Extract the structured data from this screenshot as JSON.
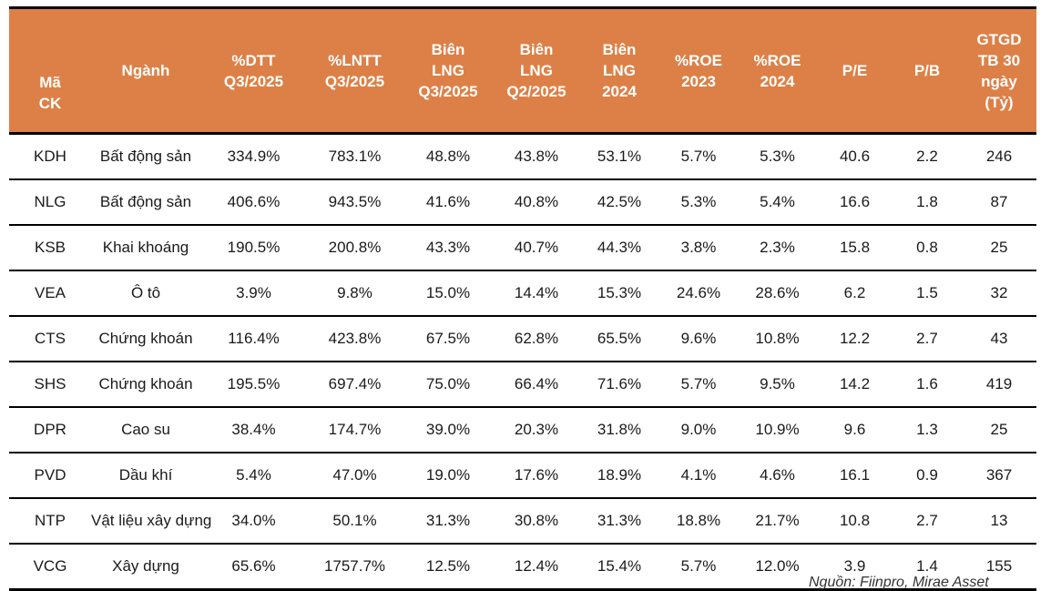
{
  "colors": {
    "header_bg": "#DD8047",
    "header_text": "#FFFFFF",
    "body_text": "#1A1A1A",
    "grid_line": "#000000"
  },
  "table": {
    "columns": [
      {
        "id": "ma-ck",
        "label": "Mã\nCK"
      },
      {
        "id": "nganh",
        "label": "Ngành"
      },
      {
        "id": "dtt-q3-2025",
        "label": "%DTT\nQ3/2025"
      },
      {
        "id": "lntt-q3-2025",
        "label": "%LNTT\nQ3/2025"
      },
      {
        "id": "bien-lng-q3-2025",
        "label": "Biên\nLNG\nQ3/2025"
      },
      {
        "id": "bien-lng-q2-2025",
        "label": "Biên\nLNG\nQ2/2025"
      },
      {
        "id": "bien-lng-2024",
        "label": "Biên\nLNG\n2024"
      },
      {
        "id": "roe-2023",
        "label": "%ROE\n2023"
      },
      {
        "id": "roe-2024",
        "label": "%ROE\n2024"
      },
      {
        "id": "pe",
        "label": "P/E"
      },
      {
        "id": "pb",
        "label": "P/B"
      },
      {
        "id": "gtgd",
        "label": "GTGD\nTB 30\nngày\n(Tỷ)"
      }
    ],
    "rows": [
      [
        "KDH",
        "Bất động sản",
        "334.9%",
        "783.1%",
        "48.8%",
        "43.8%",
        "53.1%",
        "5.7%",
        "5.3%",
        "40.6",
        "2.2",
        "246"
      ],
      [
        "NLG",
        "Bất động sản",
        "406.6%",
        "943.5%",
        "41.6%",
        "40.8%",
        "42.5%",
        "5.3%",
        "5.4%",
        "16.6",
        "1.8",
        "87"
      ],
      [
        "KSB",
        "Khai khoáng",
        "190.5%",
        "200.8%",
        "43.3%",
        "40.7%",
        "44.3%",
        "3.8%",
        "2.3%",
        "15.8",
        "0.8",
        "25"
      ],
      [
        "VEA",
        "Ô tô",
        "3.9%",
        "9.8%",
        "15.0%",
        "14.4%",
        "15.3%",
        "24.6%",
        "28.6%",
        "6.2",
        "1.5",
        "32"
      ],
      [
        "CTS",
        "Chứng khoán",
        "116.4%",
        "423.8%",
        "67.5%",
        "62.8%",
        "65.5%",
        "9.6%",
        "10.8%",
        "12.2",
        "2.7",
        "43"
      ],
      [
        "SHS",
        "Chứng khoán",
        "195.5%",
        "697.4%",
        "75.0%",
        "66.4%",
        "71.6%",
        "5.7%",
        "9.5%",
        "14.2",
        "1.6",
        "419"
      ],
      [
        "DPR",
        "Cao su",
        "38.4%",
        "174.7%",
        "39.0%",
        "20.3%",
        "31.8%",
        "9.0%",
        "10.9%",
        "9.6",
        "1.3",
        "25"
      ],
      [
        "PVD",
        "Dầu khí",
        "5.4%",
        "47.0%",
        "19.0%",
        "17.6%",
        "18.9%",
        "4.1%",
        "4.6%",
        "16.1",
        "0.9",
        "367"
      ],
      [
        "NTP",
        "Vật liệu xây dựng",
        "34.0%",
        "50.1%",
        "31.3%",
        "30.8%",
        "31.3%",
        "18.8%",
        "21.7%",
        "10.8",
        "2.7",
        "13"
      ],
      [
        "VCG",
        "Xây dựng",
        "65.6%",
        "1757.7%",
        "12.5%",
        "12.4%",
        "15.4%",
        "5.7%",
        "12.0%",
        "3.9",
        "1.4",
        "155"
      ]
    ]
  },
  "footer": {
    "source_note": "Nguồn: Fiinpro, Mirae Asset"
  }
}
